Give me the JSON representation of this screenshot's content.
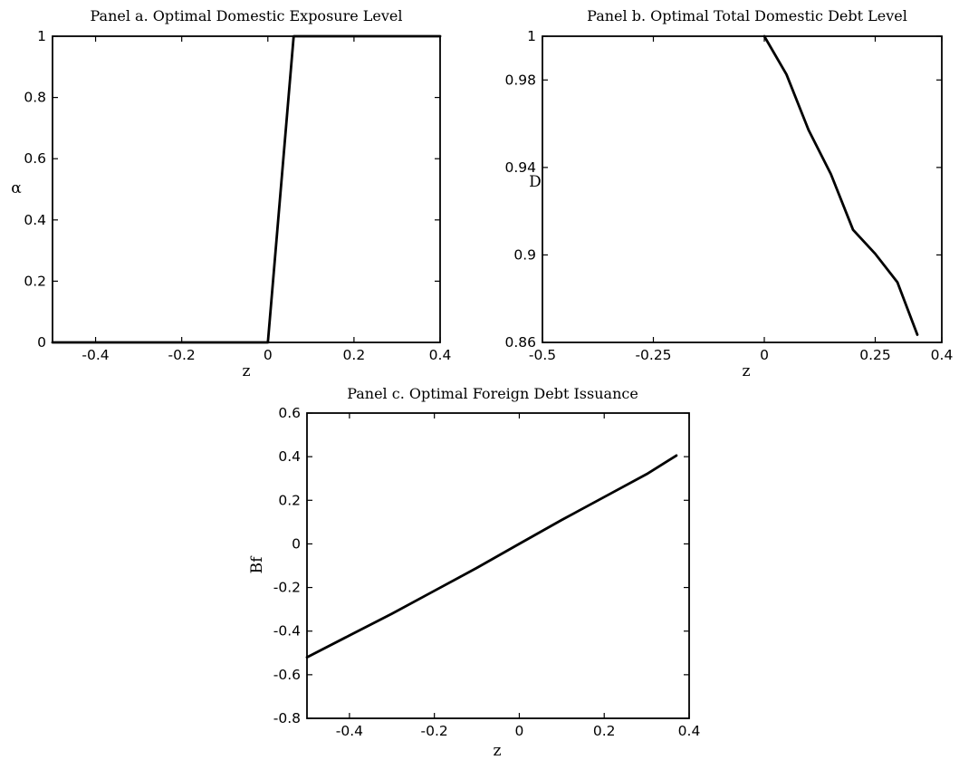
{
  "chart_data": [
    {
      "type": "line",
      "title": "Panel a. Optimal Domestic Exposure Level",
      "xlabel": "z",
      "ylabel": "α",
      "xlim": [
        -0.5,
        0.4
      ],
      "ylim": [
        0,
        1
      ],
      "xticks": [
        -0.4,
        -0.2,
        0,
        0.2,
        0.4
      ],
      "xtick_labels": [
        "-0.4",
        "-0.2",
        "0",
        "0.2",
        "0.4"
      ],
      "yticks": [
        0,
        0.2,
        0.4,
        0.6,
        0.8,
        1
      ],
      "ytick_labels": [
        "0",
        "0.2",
        "0.4",
        "0.6",
        "0.8",
        "1"
      ],
      "grid": false,
      "series": [
        {
          "x": [
            -0.5,
            0.0,
            0.06,
            0.4
          ],
          "y": [
            0,
            0,
            1,
            1
          ]
        }
      ]
    },
    {
      "type": "line",
      "title": "Panel b. Optimal Total Domestic Debt Level",
      "xlabel": "z",
      "ylabel": "D",
      "xlim": [
        -0.5,
        0.4
      ],
      "ylim": [
        0.86,
        1
      ],
      "xticks": [
        -0.5,
        -0.25,
        0,
        0.25,
        0.4
      ],
      "xtick_labels": [
        "-0.5",
        "-0.25",
        "0",
        "0.25",
        "0.4"
      ],
      "yticks": [
        0.86,
        0.9,
        0.94,
        0.98,
        1
      ],
      "ytick_labels": [
        "0.86",
        "0.9",
        "0.94",
        "0.98",
        "1"
      ],
      "grid": false,
      "series": [
        {
          "x": [
            0.0,
            0.05,
            0.1,
            0.15,
            0.2,
            0.25,
            0.3,
            0.345
          ],
          "y": [
            1.0,
            0.9825,
            0.957,
            0.937,
            0.9115,
            0.9005,
            0.8875,
            0.8635
          ]
        }
      ]
    },
    {
      "type": "line",
      "title": "Panel c. Optimal Foreign Debt Issuance",
      "xlabel": "z",
      "ylabel": "Bf",
      "xlim": [
        -0.5,
        0.4
      ],
      "ylim": [
        -0.8,
        0.6
      ],
      "xticks": [
        -0.4,
        -0.2,
        0,
        0.2,
        0.4
      ],
      "xtick_labels": [
        "-0.4",
        "-0.2",
        "0",
        "0.2",
        "0.4"
      ],
      "yticks": [
        -0.8,
        -0.6,
        -0.4,
        -0.2,
        0,
        0.2,
        0.4,
        0.6
      ],
      "ytick_labels": [
        "-0.8",
        "-0.6",
        "-0.4",
        "-0.2",
        "0",
        "0.2",
        "0.4",
        "0.6"
      ],
      "grid": false,
      "series": [
        {
          "x": [
            -0.5,
            -0.4,
            -0.3,
            -0.2,
            -0.1,
            0.0,
            0.1,
            0.2,
            0.3,
            0.37
          ],
          "y": [
            -0.52,
            -0.42,
            -0.32,
            -0.215,
            -0.11,
            0.0,
            0.11,
            0.215,
            0.32,
            0.405
          ]
        }
      ]
    }
  ]
}
